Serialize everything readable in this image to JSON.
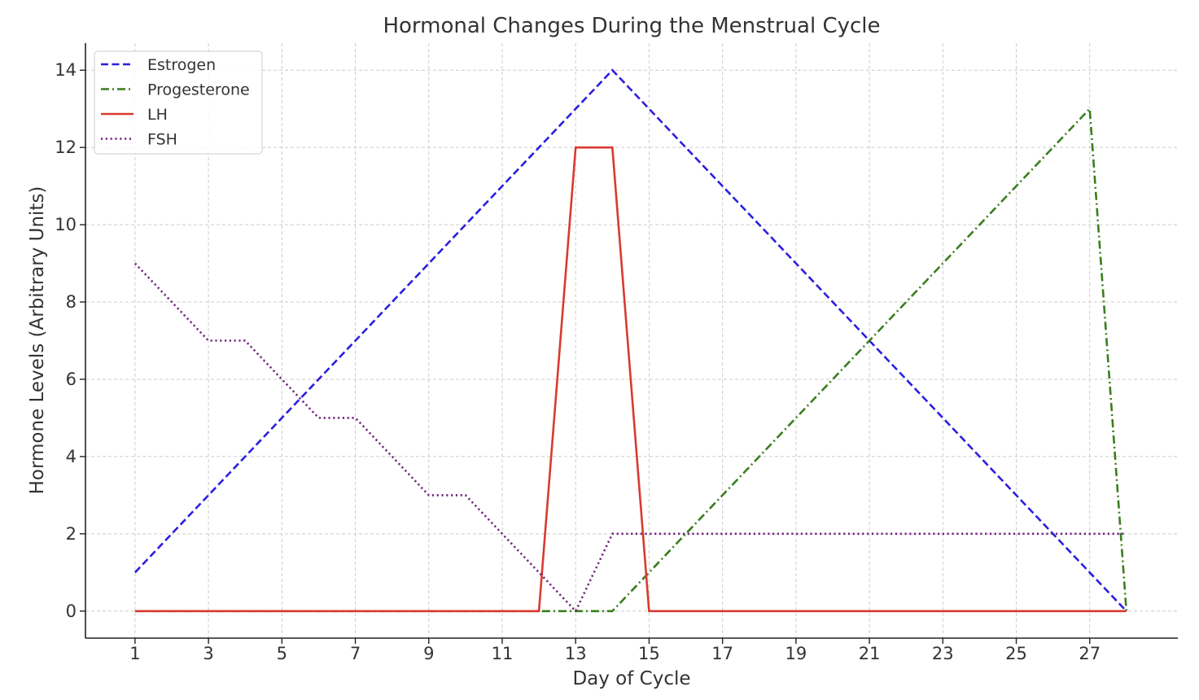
{
  "chart_data": {
    "type": "line",
    "title": "Hormonal Changes During the Menstrual Cycle",
    "xlabel": "Day of Cycle",
    "ylabel": "Hormone Levels (Arbitrary Units)",
    "xlim": [
      -0.35,
      29.4
    ],
    "ylim": [
      -0.7,
      14.7
    ],
    "x_ticks": [
      1,
      3,
      5,
      7,
      9,
      11,
      13,
      15,
      17,
      19,
      21,
      23,
      25,
      27
    ],
    "y_ticks": [
      0,
      2,
      4,
      6,
      8,
      10,
      12,
      14
    ],
    "grid": true,
    "legend_position": "top-left",
    "x": [
      1,
      2,
      3,
      4,
      5,
      6,
      7,
      8,
      9,
      10,
      11,
      12,
      13,
      14,
      15,
      16,
      17,
      18,
      19,
      20,
      21,
      22,
      23,
      24,
      25,
      26,
      27,
      28
    ],
    "series": [
      {
        "name": "Estrogen",
        "color": "#2b1fe0",
        "style": "dashed",
        "values": [
          1,
          2,
          3,
          4,
          5,
          6,
          7,
          8,
          9,
          10,
          11,
          12,
          13,
          14,
          13,
          12,
          11,
          10,
          9,
          8,
          7,
          6,
          5,
          4,
          3,
          2,
          1,
          0
        ]
      },
      {
        "name": "Progesterone",
        "color": "#3a7d1e",
        "style": "dash-dot",
        "values": [
          0,
          0,
          0,
          0,
          0,
          0,
          0,
          0,
          0,
          0,
          0,
          0,
          0,
          0,
          1,
          2,
          3,
          4,
          5,
          6,
          7,
          8,
          9,
          10,
          11,
          12,
          13,
          0
        ]
      },
      {
        "name": "LH",
        "color": "#d93a30",
        "style": "solid",
        "values": [
          0,
          0,
          0,
          0,
          0,
          0,
          0,
          0,
          0,
          0,
          0,
          0,
          12,
          12,
          0,
          0,
          0,
          0,
          0,
          0,
          0,
          0,
          0,
          0,
          0,
          0,
          0,
          0
        ]
      },
      {
        "name": "FSH",
        "color": "#72237e",
        "style": "dotted",
        "values": [
          9,
          8,
          7,
          7,
          6,
          5,
          5,
          4,
          3,
          3,
          2,
          1,
          0,
          2,
          2,
          2,
          2,
          2,
          2,
          2,
          2,
          2,
          2,
          2,
          2,
          2,
          2,
          2
        ]
      }
    ]
  }
}
